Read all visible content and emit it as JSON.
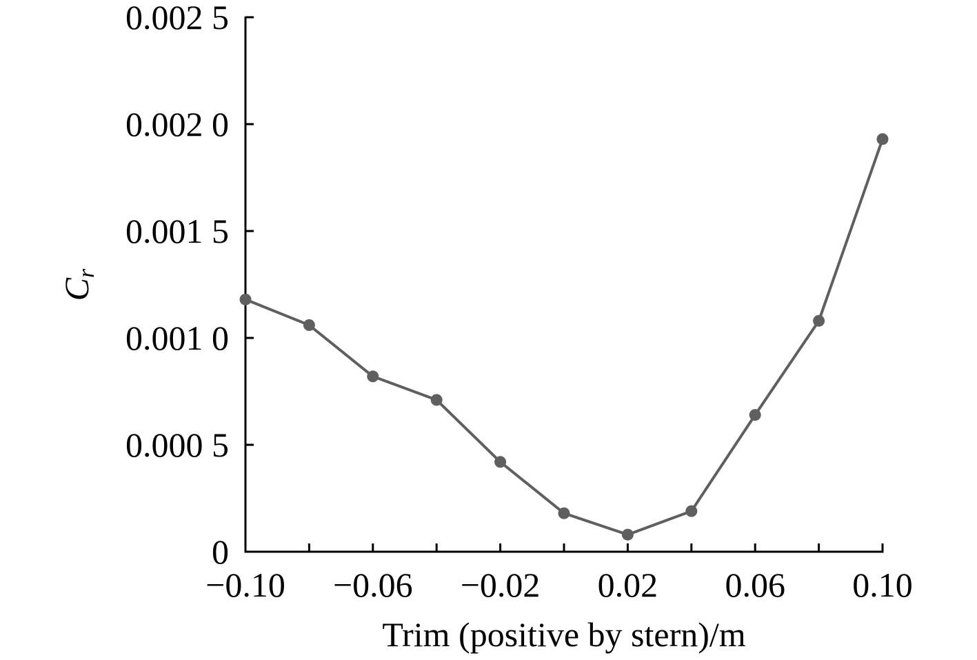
{
  "chart_data": {
    "type": "line",
    "xlabel": "Trim (positive by stern)/m",
    "ylabel": {
      "main": "C",
      "sub": "r"
    },
    "xlim": [
      -0.1,
      0.1
    ],
    "ylim": [
      0,
      0.0025
    ],
    "x_ticks": [
      {
        "value": -0.1,
        "label": "−0.10"
      },
      {
        "value": -0.08,
        "label": ""
      },
      {
        "value": -0.06,
        "label": "−0.06"
      },
      {
        "value": -0.04,
        "label": ""
      },
      {
        "value": -0.02,
        "label": "−0.02"
      },
      {
        "value": 0.0,
        "label": ""
      },
      {
        "value": 0.02,
        "label": "0.02"
      },
      {
        "value": 0.04,
        "label": ""
      },
      {
        "value": 0.06,
        "label": "0.06"
      },
      {
        "value": 0.08,
        "label": ""
      },
      {
        "value": 0.1,
        "label": "0.10"
      }
    ],
    "y_ticks": [
      {
        "value": 0,
        "label": "0"
      },
      {
        "value": 0.0005,
        "label": "0.000 5"
      },
      {
        "value": 0.001,
        "label": "0.001 0"
      },
      {
        "value": 0.0015,
        "label": "0.001 5"
      },
      {
        "value": 0.002,
        "label": "0.002 0"
      },
      {
        "value": 0.0025,
        "label": "0.002 5"
      }
    ],
    "grid": false,
    "series": [
      {
        "color": "#5f5f5f",
        "marker": "circle",
        "x": [
          -0.1,
          -0.08,
          -0.06,
          -0.04,
          -0.02,
          0.0,
          0.02,
          0.04,
          0.06,
          0.08,
          0.1
        ],
        "y": [
          0.00118,
          0.00106,
          0.00082,
          0.00071,
          0.00042,
          0.00018,
          8e-05,
          0.00019,
          0.00064,
          0.00108,
          0.00193
        ]
      }
    ]
  }
}
